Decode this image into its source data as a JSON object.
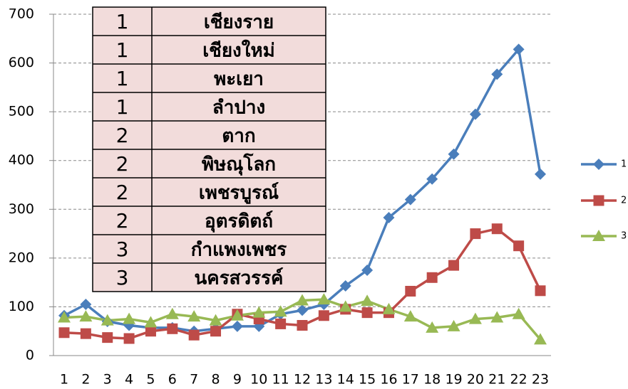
{
  "chart_data": {
    "type": "line",
    "categories": [
      "1",
      "2",
      "3",
      "4",
      "5",
      "6",
      "7",
      "8",
      "9",
      "10",
      "11",
      "12",
      "13",
      "14",
      "15",
      "16",
      "17",
      "18",
      "19",
      "20",
      "21",
      "22",
      "23"
    ],
    "series": [
      {
        "name": "1",
        "color": "#4a7ebb",
        "marker": "diamond",
        "values": [
          82,
          105,
          70,
          62,
          57,
          57,
          50,
          55,
          60,
          60,
          85,
          93,
          105,
          143,
          175,
          283,
          320,
          362,
          413,
          495,
          577,
          628,
          372
        ]
      },
      {
        "name": "2",
        "color": "#be4b48",
        "marker": "square",
        "values": [
          47,
          45,
          37,
          35,
          50,
          55,
          42,
          50,
          85,
          75,
          65,
          62,
          82,
          95,
          88,
          88,
          132,
          160,
          185,
          250,
          260,
          225,
          133
        ]
      },
      {
        "name": "3",
        "color": "#98b954",
        "marker": "triangle",
        "values": [
          78,
          80,
          72,
          75,
          68,
          85,
          80,
          72,
          82,
          88,
          90,
          113,
          115,
          100,
          112,
          95,
          80,
          57,
          60,
          75,
          78,
          85,
          33
        ]
      }
    ],
    "ylim": [
      0,
      700
    ],
    "yticks": [
      0,
      100,
      200,
      300,
      400,
      500,
      600,
      700
    ],
    "grid": true,
    "legend": "right"
  },
  "table": {
    "rows": [
      [
        "1",
        "เชียงราย"
      ],
      [
        "1",
        "เชียงใหม่"
      ],
      [
        "1",
        "พะเยา"
      ],
      [
        "1",
        "ลำปาง"
      ],
      [
        "2",
        "ตาก"
      ],
      [
        "2",
        "พิษณุโลก"
      ],
      [
        "2",
        "เพชรบูรณ์"
      ],
      [
        "2",
        "อุตรดิตถ์"
      ],
      [
        "3",
        "กำแพงเพชร"
      ],
      [
        "3",
        "นครสวรรค์"
      ]
    ]
  }
}
